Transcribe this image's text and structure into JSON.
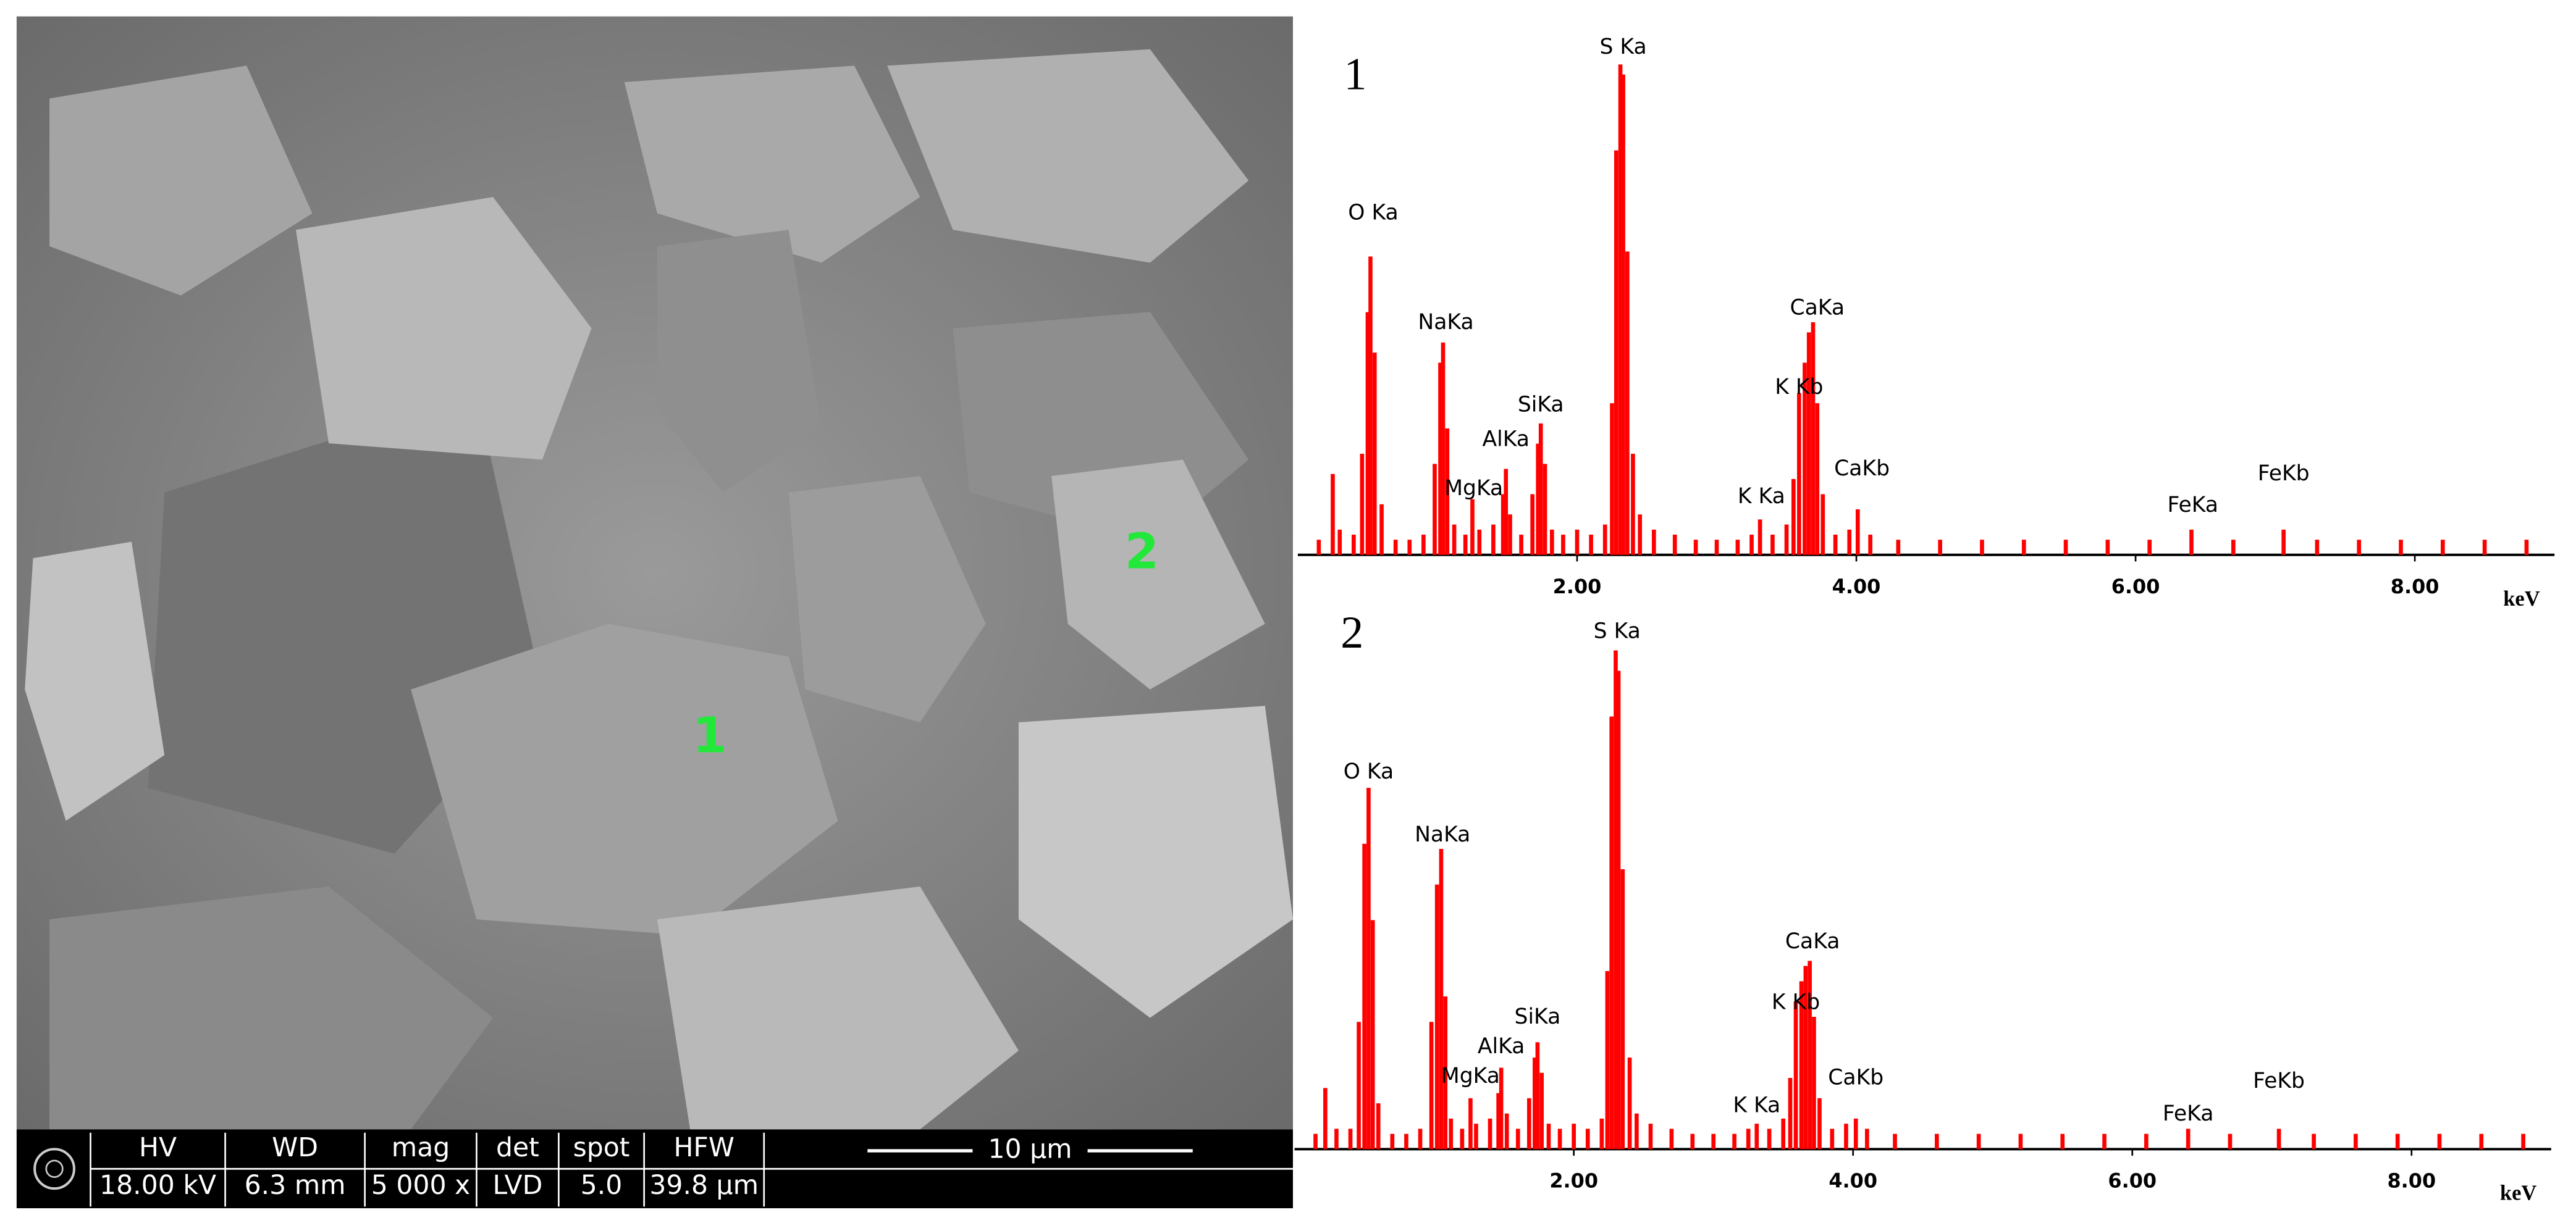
{
  "sem_image": {
    "labels": [
      "1",
      "2"
    ],
    "info_bar": {
      "headers": [
        "HV",
        "WD",
        "mag",
        "det",
        "spot",
        "HFW"
      ],
      "values": [
        "18.00 kV",
        "6.3 mm",
        "5 000 x",
        "LVD",
        "5.0",
        "39.8 µm"
      ]
    },
    "scale_bar": "10 µm"
  },
  "chart_data": [
    {
      "type": "bar",
      "panel_label": "1",
      "color": "#ff0000",
      "xlabel": "keV",
      "xlim": [
        0,
        9
      ],
      "ylim": [
        0,
        100
      ],
      "xticks": [
        {
          "value": 2,
          "label": "2.00"
        },
        {
          "value": 4,
          "label": "4.00"
        },
        {
          "value": 6,
          "label": "6.00"
        },
        {
          "value": 8,
          "label": "8.00"
        }
      ],
      "x": [
        0.15,
        0.25,
        0.3,
        0.4,
        0.46,
        0.5,
        0.52,
        0.55,
        0.6,
        0.7,
        0.8,
        0.9,
        0.98,
        1.02,
        1.04,
        1.07,
        1.12,
        1.2,
        1.25,
        1.3,
        1.4,
        1.47,
        1.49,
        1.52,
        1.6,
        1.68,
        1.72,
        1.74,
        1.77,
        1.82,
        1.9,
        2.0,
        2.1,
        2.2,
        2.25,
        2.28,
        2.31,
        2.33,
        2.36,
        2.4,
        2.45,
        2.55,
        2.7,
        2.85,
        3.0,
        3.15,
        3.25,
        3.31,
        3.4,
        3.5,
        3.55,
        3.59,
        3.63,
        3.66,
        3.69,
        3.72,
        3.76,
        3.85,
        3.95,
        4.01,
        4.1,
        4.3,
        4.6,
        4.9,
        5.2,
        5.5,
        5.8,
        6.1,
        6.4,
        6.7,
        7.06,
        7.3,
        7.6,
        7.9,
        8.2,
        8.5,
        8.8
      ],
      "values": [
        3,
        16,
        5,
        4,
        20,
        48,
        59,
        40,
        10,
        3,
        3,
        4,
        18,
        38,
        42,
        25,
        6,
        4,
        11,
        5,
        6,
        12,
        17,
        8,
        4,
        12,
        22,
        26,
        18,
        5,
        4,
        5,
        4,
        6,
        30,
        80,
        97,
        95,
        60,
        20,
        8,
        5,
        4,
        3,
        3,
        3,
        4,
        7,
        4,
        6,
        15,
        32,
        38,
        44,
        46,
        30,
        12,
        4,
        5,
        9,
        4,
        3,
        3,
        3,
        3,
        3,
        3,
        3,
        5,
        3,
        5,
        3,
        3,
        3,
        3,
        3,
        3
      ],
      "annotations": [
        {
          "text": "O Ka",
          "x": 0.54,
          "y": 67.5
        },
        {
          "text": "NaKa",
          "x": 1.06,
          "y": 45.8
        },
        {
          "text": "MgKa",
          "x": 1.26,
          "y": 13
        },
        {
          "text": "AlKa",
          "x": 1.49,
          "y": 22.7
        },
        {
          "text": "SiKa",
          "x": 1.74,
          "y": 29.5
        },
        {
          "text": "S Ka",
          "x": 2.33,
          "y": 100.3
        },
        {
          "text": "K Ka",
          "x": 3.32,
          "y": 11.4
        },
        {
          "text": "K Kb",
          "x": 3.59,
          "y": 33
        },
        {
          "text": "CaKa",
          "x": 3.72,
          "y": 48.7
        },
        {
          "text": "CaKb",
          "x": 4.04,
          "y": 16.9
        },
        {
          "text": "FeKa",
          "x": 6.41,
          "y": 9.7
        },
        {
          "text": "FeKb",
          "x": 7.06,
          "y": 15.9
        }
      ]
    },
    {
      "type": "bar",
      "panel_label": "2",
      "color": "#ff0000",
      "xlabel": "keV",
      "xlim": [
        0,
        9
      ],
      "ylim": [
        0,
        100
      ],
      "xticks": [
        {
          "value": 2,
          "label": "2.00"
        },
        {
          "value": 4,
          "label": "4.00"
        },
        {
          "value": 6,
          "label": "6.00"
        },
        {
          "value": 8,
          "label": "8.00"
        }
      ],
      "x": [
        0.15,
        0.22,
        0.3,
        0.4,
        0.46,
        0.5,
        0.53,
        0.56,
        0.6,
        0.7,
        0.8,
        0.9,
        0.98,
        1.02,
        1.05,
        1.08,
        1.12,
        1.2,
        1.26,
        1.3,
        1.4,
        1.46,
        1.48,
        1.52,
        1.6,
        1.68,
        1.72,
        1.74,
        1.77,
        1.82,
        1.9,
        2.0,
        2.1,
        2.2,
        2.24,
        2.27,
        2.3,
        2.32,
        2.35,
        2.4,
        2.45,
        2.55,
        2.7,
        2.85,
        3.0,
        3.15,
        3.25,
        3.31,
        3.4,
        3.5,
        3.55,
        3.59,
        3.63,
        3.66,
        3.69,
        3.72,
        3.76,
        3.85,
        3.95,
        4.02,
        4.1,
        4.3,
        4.6,
        4.9,
        5.2,
        5.5,
        5.8,
        6.1,
        6.4,
        6.7,
        7.05,
        7.3,
        7.6,
        7.9,
        8.2,
        8.5,
        8.8
      ],
      "values": [
        3,
        12,
        4,
        4,
        25,
        60,
        71,
        45,
        9,
        3,
        3,
        4,
        25,
        52,
        59,
        30,
        6,
        4,
        10,
        5,
        6,
        11,
        16,
        7,
        4,
        10,
        18,
        21,
        15,
        5,
        4,
        5,
        4,
        6,
        35,
        85,
        98,
        94,
        55,
        18,
        7,
        5,
        4,
        3,
        3,
        3,
        4,
        5,
        4,
        6,
        14,
        29,
        33,
        36,
        37,
        26,
        10,
        4,
        5,
        6,
        4,
        3,
        3,
        3,
        3,
        3,
        3,
        3,
        4,
        3,
        4,
        3,
        3,
        3,
        3,
        3,
        3
      ],
      "annotations": [
        {
          "text": "O Ka",
          "x": 0.53,
          "y": 74
        },
        {
          "text": "NaKa",
          "x": 1.06,
          "y": 61.6
        },
        {
          "text": "MgKa",
          "x": 1.26,
          "y": 14.2
        },
        {
          "text": "AlKa",
          "x": 1.48,
          "y": 20
        },
        {
          "text": "SiKa",
          "x": 1.74,
          "y": 25.8
        },
        {
          "text": "S Ka",
          "x": 2.31,
          "y": 101.6
        },
        {
          "text": "K Ka",
          "x": 3.31,
          "y": 8.4
        },
        {
          "text": "K Kb",
          "x": 3.59,
          "y": 28.7
        },
        {
          "text": "CaKa",
          "x": 3.71,
          "y": 40.6
        },
        {
          "text": "CaKb",
          "x": 4.02,
          "y": 13.9
        },
        {
          "text": "FeKa",
          "x": 6.4,
          "y": 6.8
        },
        {
          "text": "FeKb",
          "x": 7.05,
          "y": 13.2
        }
      ]
    }
  ]
}
